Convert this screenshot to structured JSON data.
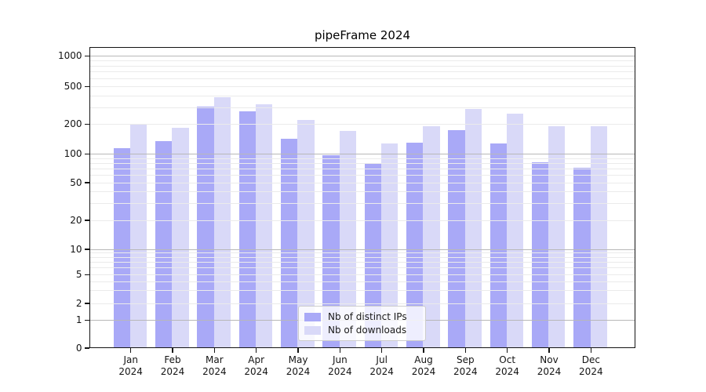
{
  "title": "pipeFrame 2024",
  "legend": {
    "position": "lower center",
    "items": [
      {
        "label": "Nb of distinct IPs",
        "color": "#a9a9f7"
      },
      {
        "label": "Nb of downloads",
        "color": "#d9d9f8"
      }
    ]
  },
  "chart_data": {
    "type": "bar",
    "title": "pipeFrame 2024",
    "xlabel": "",
    "ylabel": "",
    "categories": [
      "Jan",
      "Feb",
      "Mar",
      "Apr",
      "May",
      "Jun",
      "Jul",
      "Aug",
      "Sep",
      "Oct",
      "Nov",
      "Dec"
    ],
    "category_year": "2024",
    "series": [
      {
        "name": "Nb of distinct IPs",
        "color": "#a9a9f7",
        "values": [
          114,
          136,
          305,
          273,
          143,
          97,
          80,
          130,
          175,
          127,
          82,
          72
        ]
      },
      {
        "name": "Nb of downloads",
        "color": "#d9d9f8",
        "values": [
          203,
          183,
          390,
          323,
          222,
          170,
          128,
          190,
          290,
          257,
          192,
          192
        ]
      }
    ],
    "y_scale": {
      "type": "symlog",
      "ylim": [
        0,
        1240
      ],
      "grid": true,
      "major_gridlines": [
        1,
        10,
        100,
        1000
      ],
      "minor_gridlines": [
        2,
        3,
        4,
        5,
        6,
        7,
        8,
        9,
        20,
        30,
        40,
        50,
        60,
        70,
        80,
        90,
        200,
        300,
        400,
        500,
        600,
        700,
        800,
        900
      ]
    },
    "y_ticks": [
      {
        "value": 0,
        "label": "0"
      },
      {
        "value": 1,
        "label": "1"
      },
      {
        "value": 2,
        "label": "2"
      },
      {
        "value": 5,
        "label": "5"
      },
      {
        "value": 10,
        "label": "10"
      },
      {
        "value": 20,
        "label": "20"
      },
      {
        "value": 50,
        "label": "50"
      },
      {
        "value": 100,
        "label": "100"
      },
      {
        "value": 200,
        "label": "200"
      },
      {
        "value": 500,
        "label": "500"
      },
      {
        "value": 1000,
        "label": "1000"
      }
    ]
  }
}
